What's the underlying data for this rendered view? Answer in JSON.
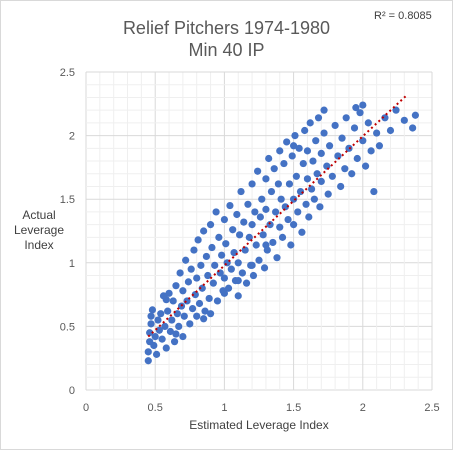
{
  "chart_data": {
    "type": "scatter",
    "title": [
      "Relief Pitchers 1974-1980",
      "Min 40 IP"
    ],
    "xlabel": "Estimated Leverage  Index",
    "ylabel": [
      "Actual",
      "Leverage",
      "Index"
    ],
    "annotation": "R² = 0.8085",
    "xlim": [
      0,
      2.5
    ],
    "ylim": [
      0,
      2.5
    ],
    "xticks": [
      "0",
      "0.5",
      "1",
      "1.5",
      "2",
      "2.5"
    ],
    "yticks": [
      "0",
      "0.5",
      "1",
      "1.5",
      "2",
      "2.5"
    ],
    "grid": true,
    "marker_color": "#4472c4",
    "trendline": {
      "type": "linear",
      "style": "dotted",
      "color": "#c00000",
      "x": [
        0.45,
        2.32
      ],
      "y": [
        0.42,
        2.32
      ]
    },
    "series": [
      {
        "points": [
          [
            0.45,
            0.23
          ],
          [
            0.45,
            0.3
          ],
          [
            0.46,
            0.38
          ],
          [
            0.46,
            0.45
          ],
          [
            0.47,
            0.52
          ],
          [
            0.47,
            0.58
          ],
          [
            0.48,
            0.63
          ],
          [
            0.49,
            0.35
          ],
          [
            0.5,
            0.42
          ],
          [
            0.51,
            0.28
          ],
          [
            0.52,
            0.55
          ],
          [
            0.53,
            0.47
          ],
          [
            0.54,
            0.6
          ],
          [
            0.55,
            0.4
          ],
          [
            0.56,
            0.74
          ],
          [
            0.57,
            0.5
          ],
          [
            0.58,
            0.33
          ],
          [
            0.59,
            0.62
          ],
          [
            0.6,
            0.76
          ],
          [
            0.61,
            0.46
          ],
          [
            0.62,
            0.55
          ],
          [
            0.63,
            0.7
          ],
          [
            0.64,
            0.38
          ],
          [
            0.65,
            0.82
          ],
          [
            0.66,
            0.6
          ],
          [
            0.67,
            0.5
          ],
          [
            0.68,
            0.92
          ],
          [
            0.69,
            0.66
          ],
          [
            0.7,
            0.42
          ],
          [
            0.7,
            0.78
          ],
          [
            0.71,
            0.58
          ],
          [
            0.72,
            1.02
          ],
          [
            0.73,
            0.7
          ],
          [
            0.74,
            0.85
          ],
          [
            0.75,
            0.52
          ],
          [
            0.76,
            0.95
          ],
          [
            0.77,
            0.64
          ],
          [
            0.78,
            1.1
          ],
          [
            0.79,
            0.75
          ],
          [
            0.8,
            0.58
          ],
          [
            0.8,
            0.88
          ],
          [
            0.81,
            1.18
          ],
          [
            0.82,
            0.68
          ],
          [
            0.83,
            0.98
          ],
          [
            0.84,
            0.8
          ],
          [
            0.85,
            1.25
          ],
          [
            0.86,
            0.62
          ],
          [
            0.87,
            1.05
          ],
          [
            0.88,
            0.9
          ],
          [
            0.89,
            0.72
          ],
          [
            0.9,
            1.3
          ],
          [
            0.9,
            0.6
          ],
          [
            0.91,
            1.12
          ],
          [
            0.92,
            0.84
          ],
          [
            0.93,
            0.98
          ],
          [
            0.94,
            1.4
          ],
          [
            0.95,
            0.7
          ],
          [
            0.96,
            1.2
          ],
          [
            0.97,
            0.92
          ],
          [
            0.98,
            1.06
          ],
          [
            0.99,
            0.78
          ],
          [
            1.0,
            1.34
          ],
          [
            1.0,
            0.88
          ],
          [
            1.01,
            1.15
          ],
          [
            1.02,
            1.0
          ],
          [
            1.03,
            0.8
          ],
          [
            1.04,
            1.45
          ],
          [
            1.05,
            0.95
          ],
          [
            1.06,
            1.26
          ],
          [
            1.07,
            1.08
          ],
          [
            1.08,
            0.86
          ],
          [
            1.09,
            1.38
          ],
          [
            1.1,
            1.0
          ],
          [
            1.1,
            0.74
          ],
          [
            1.11,
            1.22
          ],
          [
            1.12,
            1.56
          ],
          [
            1.13,
            0.92
          ],
          [
            1.14,
            1.32
          ],
          [
            1.15,
            1.1
          ],
          [
            1.16,
            0.84
          ],
          [
            1.17,
            1.46
          ],
          [
            1.18,
            1.2
          ],
          [
            1.19,
            0.98
          ],
          [
            1.2,
            1.62
          ],
          [
            1.2,
            1.3
          ],
          [
            1.21,
            0.9
          ],
          [
            1.22,
            1.4
          ],
          [
            1.23,
            1.14
          ],
          [
            1.24,
            1.72
          ],
          [
            1.25,
            1.02
          ],
          [
            1.26,
            1.36
          ],
          [
            1.27,
            1.5
          ],
          [
            1.28,
            1.22
          ],
          [
            1.29,
            0.96
          ],
          [
            1.3,
            1.66
          ],
          [
            1.3,
            1.42
          ],
          [
            1.31,
            1.1
          ],
          [
            1.32,
            1.82
          ],
          [
            1.33,
            1.3
          ],
          [
            1.34,
            1.56
          ],
          [
            1.35,
            1.16
          ],
          [
            1.36,
            1.74
          ],
          [
            1.37,
            1.4
          ],
          [
            1.38,
            1.04
          ],
          [
            1.39,
            1.62
          ],
          [
            1.4,
            1.88
          ],
          [
            1.4,
            1.28
          ],
          [
            1.41,
            1.5
          ],
          [
            1.42,
            1.2
          ],
          [
            1.43,
            1.78
          ],
          [
            1.44,
            1.44
          ],
          [
            1.45,
            1.95
          ],
          [
            1.46,
            1.34
          ],
          [
            1.47,
            1.62
          ],
          [
            1.48,
            1.14
          ],
          [
            1.49,
            1.84
          ],
          [
            1.5,
            1.5
          ],
          [
            1.5,
            1.3
          ],
          [
            1.51,
            2.0
          ],
          [
            1.52,
            1.68
          ],
          [
            1.53,
            1.4
          ],
          [
            1.54,
            1.9
          ],
          [
            1.55,
            1.56
          ],
          [
            1.56,
            1.24
          ],
          [
            1.57,
            1.78
          ],
          [
            1.58,
            2.04
          ],
          [
            1.59,
            1.46
          ],
          [
            1.6,
            1.66
          ],
          [
            1.6,
            1.88
          ],
          [
            1.61,
            1.36
          ],
          [
            1.62,
            2.1
          ],
          [
            1.63,
            1.58
          ],
          [
            1.64,
            1.8
          ],
          [
            1.65,
            1.5
          ],
          [
            1.66,
            1.96
          ],
          [
            1.67,
            1.7
          ],
          [
            1.68,
            2.14
          ],
          [
            1.69,
            1.44
          ],
          [
            1.7,
            1.86
          ],
          [
            1.7,
            1.64
          ],
          [
            1.72,
            2.02
          ],
          [
            1.74,
            1.76
          ],
          [
            1.75,
            1.54
          ],
          [
            1.76,
            1.92
          ],
          [
            1.78,
            1.68
          ],
          [
            1.8,
            2.08
          ],
          [
            1.82,
            1.84
          ],
          [
            1.84,
            1.6
          ],
          [
            1.85,
            1.98
          ],
          [
            1.87,
            1.74
          ],
          [
            1.88,
            2.14
          ],
          [
            1.9,
            1.9
          ],
          [
            1.92,
            1.7
          ],
          [
            1.94,
            2.06
          ],
          [
            1.96,
            1.82
          ],
          [
            1.98,
            2.18
          ],
          [
            2.0,
            1.96
          ],
          [
            2.02,
            1.76
          ],
          [
            2.04,
            2.1
          ],
          [
            2.06,
            1.88
          ],
          [
            2.08,
            1.56
          ],
          [
            2.1,
            2.02
          ],
          [
            2.12,
            1.92
          ],
          [
            2.16,
            2.14
          ],
          [
            2.2,
            2.04
          ],
          [
            2.24,
            2.2
          ],
          [
            2.3,
            2.12
          ],
          [
            2.36,
            2.06
          ],
          [
            2.38,
            2.16
          ],
          [
            2.0,
            2.24
          ],
          [
            1.95,
            2.22
          ],
          [
            1.72,
            2.2
          ],
          [
            1.5,
            1.92
          ],
          [
            1.0,
            0.76
          ],
          [
            0.85,
            0.56
          ],
          [
            0.65,
            0.44
          ],
          [
            0.58,
            0.71
          ],
          [
            1.1,
            0.86
          ],
          [
            1.2,
            0.98
          ],
          [
            1.3,
            1.14
          ]
        ]
      }
    ]
  }
}
